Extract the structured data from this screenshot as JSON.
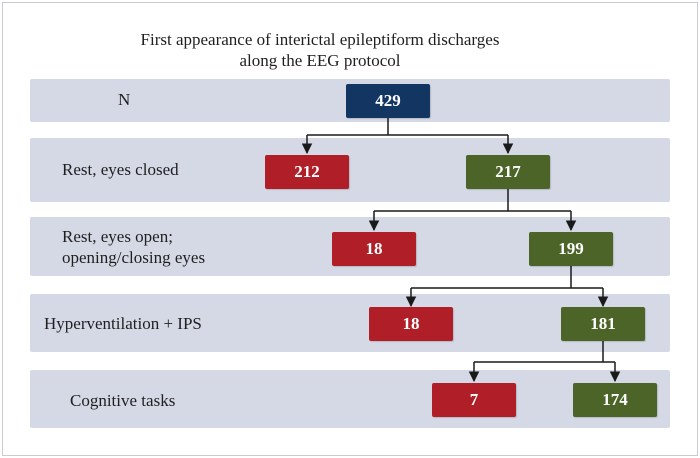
{
  "title": {
    "line1": "First appearance of interictal epileptiform discharges",
    "line2": "along the EEG protocol"
  },
  "colors": {
    "row_band": "#d5d9e6",
    "total_box": "#133561",
    "red_box": "#b01f27",
    "green_box": "#4d6428",
    "connector": "#1a1a1a"
  },
  "rows": [
    {
      "label_lines": [
        "N"
      ],
      "boxes": [
        {
          "value": "429",
          "kind": "total"
        }
      ]
    },
    {
      "label_lines": [
        "Rest, eyes closed"
      ],
      "boxes": [
        {
          "value": "212",
          "kind": "red"
        },
        {
          "value": "217",
          "kind": "green"
        }
      ]
    },
    {
      "label_lines": [
        "Rest, eyes open;",
        "opening/closing eyes"
      ],
      "boxes": [
        {
          "value": "18",
          "kind": "red"
        },
        {
          "value": "199",
          "kind": "green"
        }
      ]
    },
    {
      "label_lines": [
        "Hyperventilation + IPS"
      ],
      "boxes": [
        {
          "value": "18",
          "kind": "red"
        },
        {
          "value": "181",
          "kind": "green"
        }
      ]
    },
    {
      "label_lines": [
        "Cognitive tasks"
      ],
      "boxes": [
        {
          "value": "7",
          "kind": "red"
        },
        {
          "value": "174",
          "kind": "green"
        }
      ]
    }
  ]
}
